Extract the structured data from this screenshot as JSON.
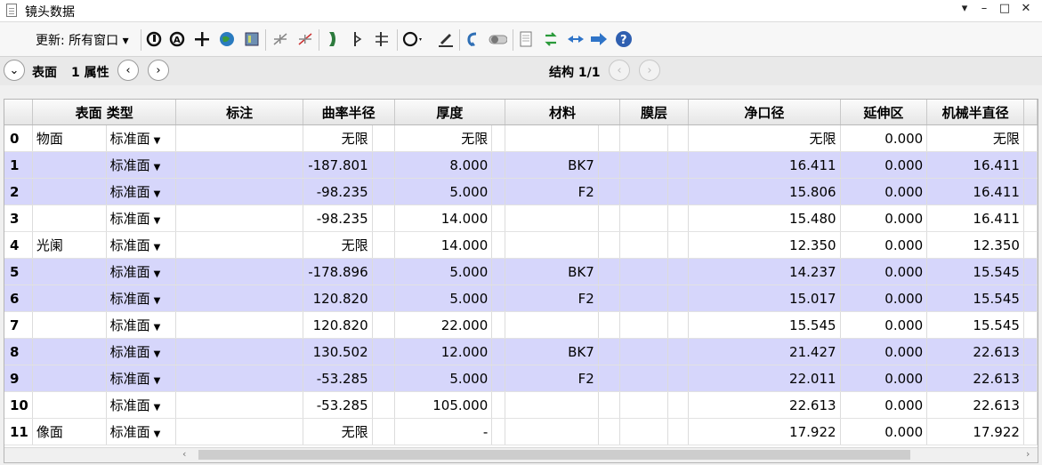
{
  "window": {
    "title": "镜头数据"
  },
  "window_controls": {
    "dropdown": "▾",
    "minimize": "–",
    "maximize": "□",
    "close": "✕"
  },
  "toolbar": {
    "update_label": "更新: 所有窗口 ▾"
  },
  "nav": {
    "surface_label": "表面",
    "properties_label": "1 属性",
    "config_label": "结构 1/1"
  },
  "columns": [
    "表面 类型",
    "标注",
    "曲率半径",
    "厚度",
    "材料",
    "膜层",
    "净口径",
    "延伸区",
    "机械半直径"
  ],
  "rows": [
    {
      "idx": "0",
      "name": "物面",
      "type": "标准面",
      "comment": "",
      "radius": "无限",
      "thickness": "无限",
      "material": "",
      "coating": "",
      "clear": "无限",
      "chip": "0.000",
      "mech": "无限",
      "blue": false
    },
    {
      "idx": "1",
      "name": "",
      "type": "标准面",
      "comment": "",
      "radius": "-187.801",
      "thickness": "8.000",
      "material": "BK7",
      "coating": "",
      "clear": "16.411",
      "chip": "0.000",
      "mech": "16.411",
      "blue": true
    },
    {
      "idx": "2",
      "name": "",
      "type": "标准面",
      "comment": "",
      "radius": "-98.235",
      "thickness": "5.000",
      "material": "F2",
      "coating": "",
      "clear": "15.806",
      "chip": "0.000",
      "mech": "16.411",
      "blue": true
    },
    {
      "idx": "3",
      "name": "",
      "type": "标准面",
      "comment": "",
      "radius": "-98.235",
      "thickness": "14.000",
      "material": "",
      "coating": "",
      "clear": "15.480",
      "chip": "0.000",
      "mech": "16.411",
      "blue": false
    },
    {
      "idx": "4",
      "name": "光阑",
      "type": "标准面",
      "comment": "",
      "radius": "无限",
      "thickness": "14.000",
      "material": "",
      "coating": "",
      "clear": "12.350",
      "chip": "0.000",
      "mech": "12.350",
      "blue": false
    },
    {
      "idx": "5",
      "name": "",
      "type": "标准面",
      "comment": "",
      "radius": "-178.896",
      "thickness": "5.000",
      "material": "BK7",
      "coating": "",
      "clear": "14.237",
      "chip": "0.000",
      "mech": "15.545",
      "blue": true
    },
    {
      "idx": "6",
      "name": "",
      "type": "标准面",
      "comment": "",
      "radius": "120.820",
      "thickness": "5.000",
      "material": "F2",
      "coating": "",
      "clear": "15.017",
      "chip": "0.000",
      "mech": "15.545",
      "blue": true
    },
    {
      "idx": "7",
      "name": "",
      "type": "标准面",
      "comment": "",
      "radius": "120.820",
      "thickness": "22.000",
      "material": "",
      "coating": "",
      "clear": "15.545",
      "chip": "0.000",
      "mech": "15.545",
      "blue": false
    },
    {
      "idx": "8",
      "name": "",
      "type": "标准面",
      "comment": "",
      "radius": "130.502",
      "thickness": "12.000",
      "material": "BK7",
      "coating": "",
      "clear": "21.427",
      "chip": "0.000",
      "mech": "22.613",
      "blue": true
    },
    {
      "idx": "9",
      "name": "",
      "type": "标准面",
      "comment": "",
      "radius": "-53.285",
      "thickness": "5.000",
      "material": "F2",
      "coating": "",
      "clear": "22.011",
      "chip": "0.000",
      "mech": "22.613",
      "blue": true
    },
    {
      "idx": "10",
      "name": "",
      "type": "标准面",
      "comment": "",
      "radius": "-53.285",
      "thickness": "105.000",
      "material": "",
      "coating": "",
      "clear": "22.613",
      "chip": "0.000",
      "mech": "22.613",
      "blue": false
    },
    {
      "idx": "11",
      "name": "像面",
      "type": "标准面",
      "comment": "",
      "radius": "无限",
      "thickness": "-",
      "material": "",
      "coating": "",
      "clear": "17.922",
      "chip": "0.000",
      "mech": "17.922",
      "blue": false
    }
  ]
}
